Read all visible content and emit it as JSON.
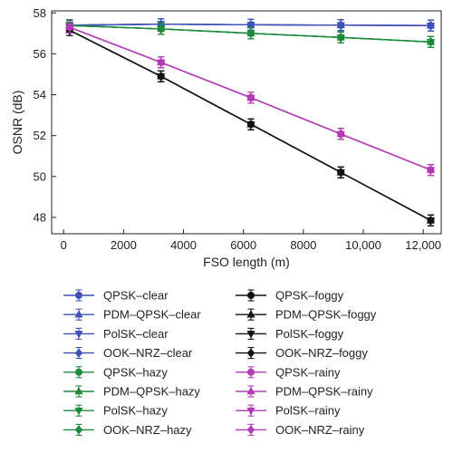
{
  "chart_data": {
    "type": "line",
    "xlabel": "FSO length (m)",
    "ylabel": "OSNR (dB)",
    "xlim": [
      -400,
      12600
    ],
    "ylim": [
      47.2,
      58.1
    ],
    "x_ticks": [
      0,
      2000,
      4000,
      6000,
      8000,
      10000,
      12000
    ],
    "x_tick_labels": [
      "0",
      "2000",
      "4000",
      "6000",
      "8000",
      "10,000",
      "12,000"
    ],
    "y_ticks": [
      48,
      50,
      52,
      54,
      56,
      58
    ],
    "y_tick_labels": [
      "48",
      "50",
      "52",
      "54",
      "56",
      "58"
    ],
    "x": [
      200,
      3250,
      6250,
      9250,
      12250
    ],
    "error_bars": true,
    "legend_position": "below",
    "series": [
      {
        "name": "QPSK–clear",
        "color": "#3f51b5",
        "marker": "circle",
        "values": [
          57.4,
          57.45,
          57.42,
          57.4,
          57.38
        ]
      },
      {
        "name": "PDM–QPSK–clear",
        "color": "#3f51b5",
        "marker": "triangle-up",
        "values": [
          57.4,
          57.45,
          57.42,
          57.4,
          57.38
        ]
      },
      {
        "name": "PolSK–clear",
        "color": "#3f51b5",
        "marker": "triangle-down",
        "values": [
          57.4,
          57.45,
          57.42,
          57.4,
          57.38
        ]
      },
      {
        "name": "OOK–NRZ–clear",
        "color": "#3f51b5",
        "marker": "diamond",
        "values": [
          57.4,
          57.45,
          57.42,
          57.4,
          57.38
        ]
      },
      {
        "name": "QPSK–hazy",
        "color": "#1e8a3c",
        "marker": "circle",
        "values": [
          57.38,
          57.22,
          57.0,
          56.8,
          56.58
        ]
      },
      {
        "name": "PDM–QPSK–hazy",
        "color": "#1e8a3c",
        "marker": "triangle-up",
        "values": [
          57.38,
          57.22,
          57.0,
          56.8,
          56.58
        ]
      },
      {
        "name": "PolSK–hazy",
        "color": "#1e8a3c",
        "marker": "triangle-down",
        "values": [
          57.38,
          57.22,
          57.0,
          56.8,
          56.58
        ]
      },
      {
        "name": "OOK–NRZ–hazy",
        "color": "#1e8a3c",
        "marker": "diamond",
        "values": [
          57.38,
          57.22,
          57.0,
          56.8,
          56.58
        ]
      },
      {
        "name": "QPSK–foggy",
        "color": "#111111",
        "marker": "circle",
        "values": [
          57.15,
          54.9,
          52.55,
          50.2,
          47.85
        ]
      },
      {
        "name": "PDM–QPSK–foggy",
        "color": "#111111",
        "marker": "triangle-up",
        "values": [
          57.15,
          54.9,
          52.55,
          50.2,
          47.85
        ]
      },
      {
        "name": "PolSK–foggy",
        "color": "#111111",
        "marker": "triangle-down",
        "values": [
          57.15,
          54.9,
          52.55,
          50.2,
          47.85
        ]
      },
      {
        "name": "OOK–NRZ–foggy",
        "color": "#111111",
        "marker": "diamond",
        "values": [
          57.15,
          54.9,
          52.55,
          50.2,
          47.85
        ]
      },
      {
        "name": "QPSK–rainy",
        "color": "#b23bb5",
        "marker": "circle",
        "values": [
          57.3,
          55.58,
          53.85,
          52.08,
          50.32
        ]
      },
      {
        "name": "PDM–QPSK–rainy",
        "color": "#b23bb5",
        "marker": "triangle-up",
        "values": [
          57.3,
          55.58,
          53.85,
          52.08,
          50.32
        ]
      },
      {
        "name": "PolSK–rainy",
        "color": "#b23bb5",
        "marker": "triangle-down",
        "values": [
          57.3,
          55.58,
          53.85,
          52.08,
          50.32
        ]
      },
      {
        "name": "OOK–NRZ–rainy",
        "color": "#b23bb5",
        "marker": "diamond",
        "values": [
          57.3,
          55.58,
          53.85,
          52.08,
          50.32
        ]
      }
    ]
  }
}
